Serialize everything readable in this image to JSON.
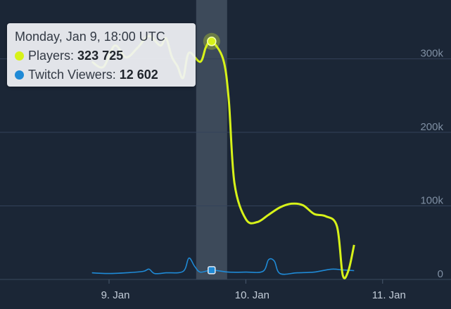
{
  "tooltip": {
    "header": "Monday, Jan 9, 18:00 UTC",
    "series": [
      {
        "name": "Players",
        "value_text": "323 725",
        "color": "#d7f219"
      },
      {
        "name": "Twitch Viewers",
        "value_text": "12 602",
        "color": "#1f8ad6"
      }
    ]
  },
  "chart_data": {
    "type": "line",
    "y_ticks": [
      "300k",
      "200k",
      "100k",
      "0"
    ],
    "x_ticks": [
      "9. Jan",
      "10. Jan",
      "11. Jan"
    ],
    "ylim": [
      0,
      380000
    ],
    "grid": true,
    "highlight": {
      "x": "Jan 9 18:00",
      "players": 323725,
      "twitch_viewers": 12602
    },
    "series": [
      {
        "name": "Players",
        "color": "#d7f219",
        "points": [
          [
            "Jan 8 21:00",
            296000
          ],
          [
            "Jan 8 23:00",
            289000
          ],
          [
            "Jan 9 01:00",
            318000
          ],
          [
            "Jan 9 03:00",
            302000
          ],
          [
            "Jan 9 05:00",
            315000
          ],
          [
            "Jan 9 07:00",
            331000
          ],
          [
            "Jan 9 09:00",
            318000
          ],
          [
            "Jan 9 10:00",
            328000
          ],
          [
            "Jan 9 11:00",
            303000
          ],
          [
            "Jan 9 12:00",
            290000
          ],
          [
            "Jan 9 13:00",
            274000
          ],
          [
            "Jan 9 14:00",
            308000
          ],
          [
            "Jan 9 16:00",
            296000
          ],
          [
            "Jan 9 17:00",
            316000
          ],
          [
            "Jan 9 18:00",
            323725
          ],
          [
            "Jan 9 20:00",
            300000
          ],
          [
            "Jan 9 21:00",
            245000
          ],
          [
            "Jan 9 22:00",
            131000
          ],
          [
            "Jan 10 00:00",
            82000
          ],
          [
            "Jan 10 02:00",
            78000
          ],
          [
            "Jan 10 04:00",
            88000
          ],
          [
            "Jan 10 06:00",
            98000
          ],
          [
            "Jan 10 08:00",
            103000
          ],
          [
            "Jan 10 10:00",
            101000
          ],
          [
            "Jan 10 12:00",
            89000
          ],
          [
            "Jan 10 14:00",
            86000
          ],
          [
            "Jan 10 16:00",
            72000
          ],
          [
            "Jan 10 17:00",
            6000
          ],
          [
            "Jan 10 18:00",
            12000
          ],
          [
            "Jan 10 19:00",
            47000
          ]
        ]
      },
      {
        "name": "Twitch Viewers",
        "color": "#1f8ad6",
        "points": [
          [
            "Jan 8 21:00",
            9000
          ],
          [
            "Jan 9 00:00",
            8000
          ],
          [
            "Jan 9 03:00",
            9000
          ],
          [
            "Jan 9 06:00",
            11000
          ],
          [
            "Jan 9 07:00",
            14000
          ],
          [
            "Jan 9 08:00",
            8000
          ],
          [
            "Jan 9 10:00",
            9000
          ],
          [
            "Jan 9 13:00",
            11000
          ],
          [
            "Jan 9 14:00",
            29000
          ],
          [
            "Jan 9 15:00",
            18000
          ],
          [
            "Jan 9 16:00",
            10000
          ],
          [
            "Jan 9 18:00",
            12602
          ],
          [
            "Jan 9 21:00",
            10000
          ],
          [
            "Jan 10 00:00",
            10000
          ],
          [
            "Jan 10 03:00",
            11000
          ],
          [
            "Jan 10 04:00",
            27000
          ],
          [
            "Jan 10 05:00",
            25000
          ],
          [
            "Jan 10 06:00",
            8000
          ],
          [
            "Jan 10 09:00",
            9000
          ],
          [
            "Jan 10 12:00",
            10000
          ],
          [
            "Jan 10 15:00",
            14000
          ],
          [
            "Jan 10 17:00",
            13000
          ],
          [
            "Jan 10 19:00",
            12000
          ]
        ]
      }
    ]
  }
}
